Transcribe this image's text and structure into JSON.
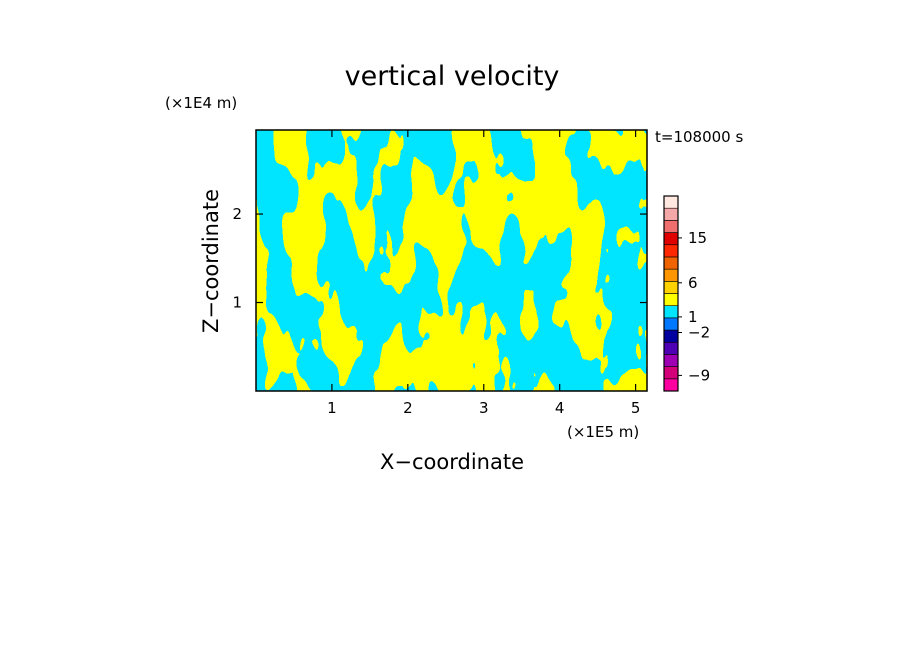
{
  "chart_data": {
    "type": "heatmap",
    "title": "vertical velocity",
    "xlabel": "X−coordinate",
    "ylabel": "Z−coordinate",
    "x_unit": "(×1E5 m)",
    "y_unit": "(×1E4 m)",
    "time_label": "t=108000  s",
    "xlim": [
      0,
      5.15
    ],
    "ylim": [
      0,
      2.95
    ],
    "x_ticks": [
      1,
      2,
      3,
      4,
      5
    ],
    "x_tick_labels": [
      "1",
      "2",
      "3",
      "4",
      "5"
    ],
    "y_ticks": [
      1,
      2
    ],
    "y_tick_labels": [
      "1",
      "2"
    ],
    "field_colors": {
      "positive": "#ffff00",
      "negative": "#00e5ff"
    },
    "colorbar": {
      "levels": [
        {
          "color": "#ff00a0"
        },
        {
          "color": "#d4007a"
        },
        {
          "color": "#a000b4"
        },
        {
          "color": "#5000b4"
        },
        {
          "color": "#0000a0"
        },
        {
          "color": "#0078ff"
        },
        {
          "color": "#00e5ff"
        },
        {
          "color": "#ffff00"
        },
        {
          "color": "#ffd200"
        },
        {
          "color": "#ff9600"
        },
        {
          "color": "#f06400"
        },
        {
          "color": "#ff2800"
        },
        {
          "color": "#e00000"
        },
        {
          "color": "#f06e6e"
        },
        {
          "color": "#f5a8a8"
        },
        {
          "color": "#ffe8e0"
        }
      ],
      "labels": [
        {
          "text": "15",
          "at": 0.785
        },
        {
          "text": "6",
          "at": 0.555
        },
        {
          "text": "1",
          "at": 0.38
        },
        {
          "text": "−2",
          "at": 0.3
        },
        {
          "text": "−9",
          "at": 0.08
        }
      ]
    }
  }
}
